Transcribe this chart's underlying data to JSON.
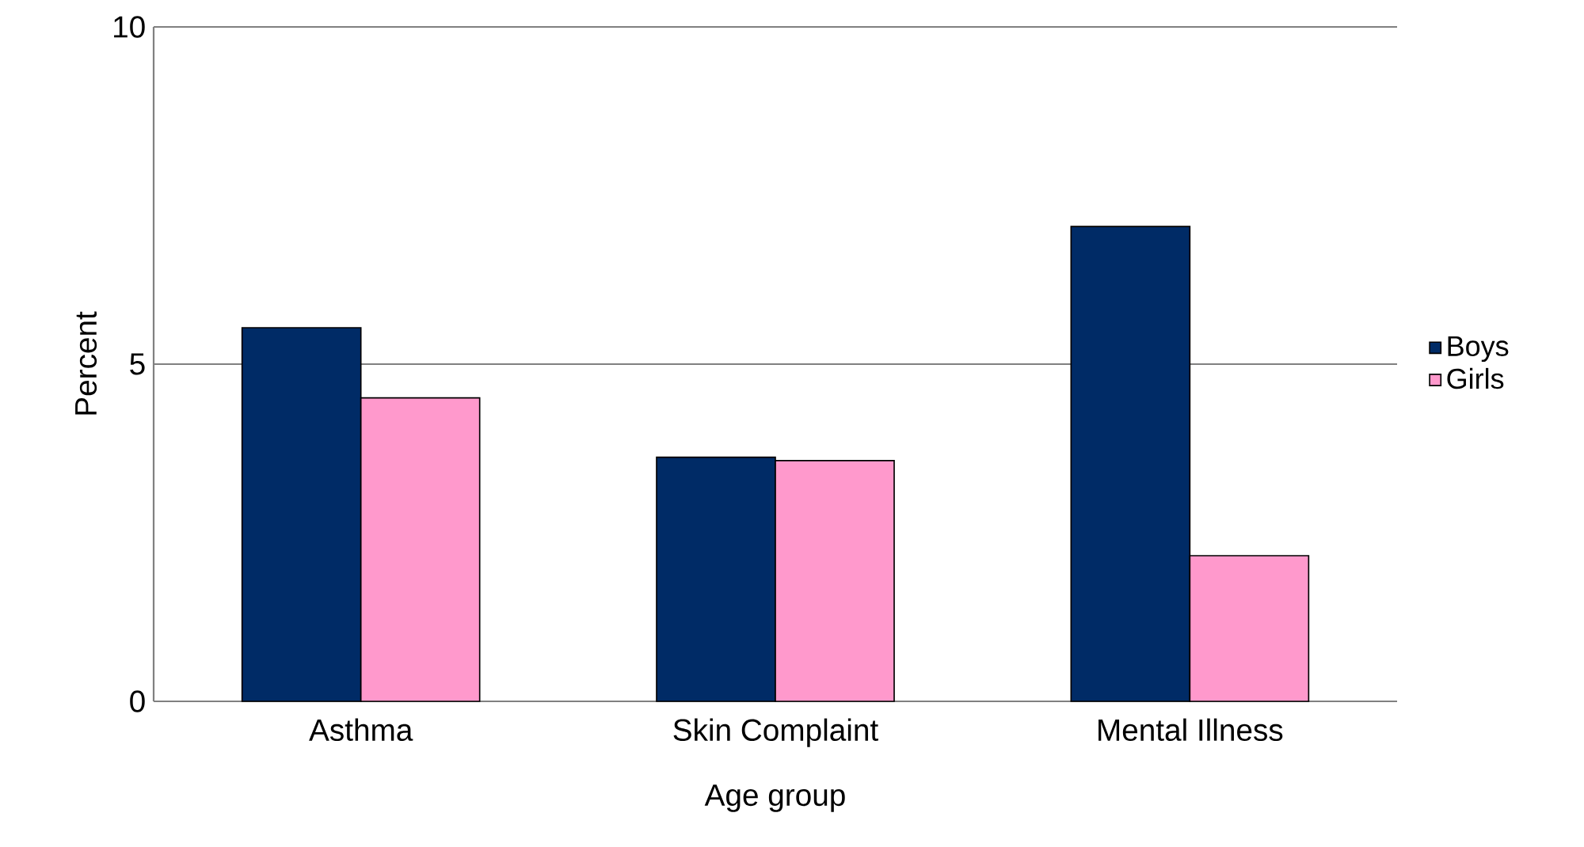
{
  "chart_data": {
    "type": "bar",
    "xlabel": "Age group",
    "ylabel": "Percent",
    "categories": [
      "Asthma",
      "Skin Complaint",
      "Mental Illness"
    ],
    "series": [
      {
        "name": "Boys",
        "color": "#002b66",
        "values": [
          5.54,
          3.62,
          7.04
        ]
      },
      {
        "name": "Girls",
        "color": "#ff99cc",
        "values": [
          4.5,
          3.57,
          2.16
        ]
      }
    ],
    "ylim": [
      0,
      10
    ],
    "yticks": [
      0,
      5,
      10
    ],
    "grid": "y",
    "legend": "right"
  }
}
